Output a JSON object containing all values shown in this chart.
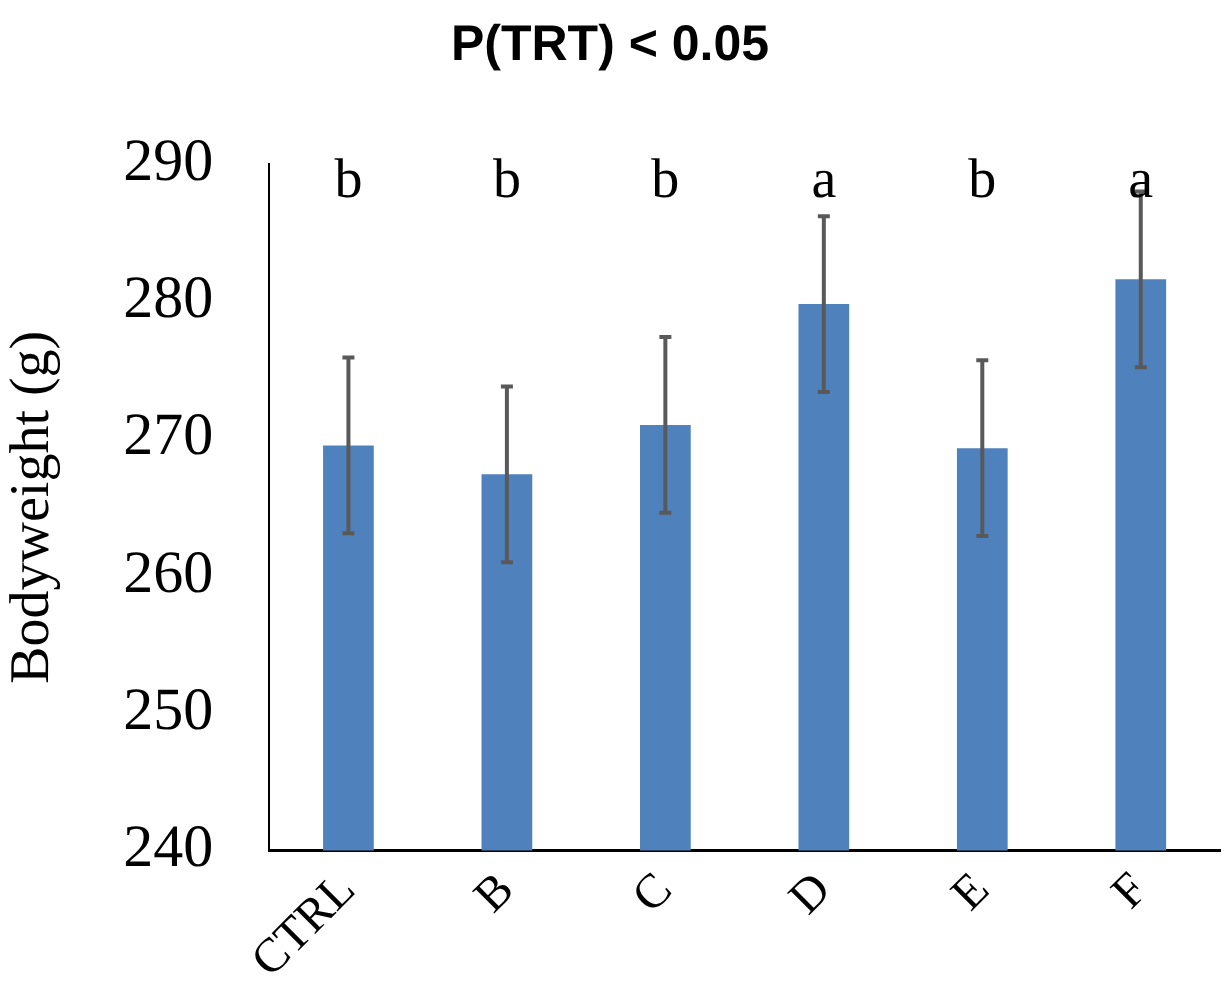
{
  "chart_data": {
    "type": "bar",
    "title": "P(TRT) < 0.05",
    "ylabel": "Bodyweight (g)",
    "categories": [
      "CTRL",
      "B",
      "C",
      "D",
      "E",
      "F"
    ],
    "values": [
      269.5,
      267.4,
      271.0,
      279.8,
      269.3,
      281.6
    ],
    "errors": [
      6.4,
      6.4,
      6.4,
      6.4,
      6.4,
      6.4
    ],
    "color": "#4f81bd",
    "ylim": [
      240,
      290
    ],
    "yticks": [
      240,
      250,
      260,
      270,
      280,
      290
    ],
    "grid": false,
    "legend": false,
    "annotations": [
      "b",
      "b",
      "b",
      "a",
      "b",
      "a"
    ]
  }
}
